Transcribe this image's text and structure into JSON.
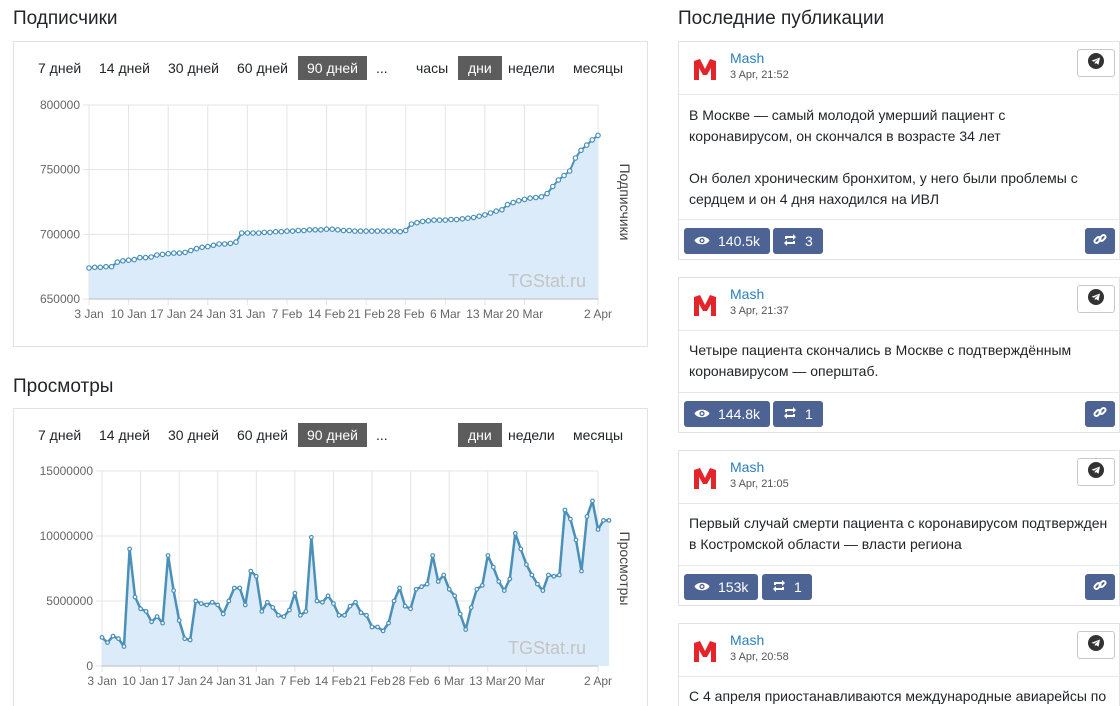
{
  "subscribers": {
    "title": "Подписчики",
    "ranges": [
      "7 дней",
      "14 дней",
      "30 дней",
      "60 дней",
      "90 дней",
      "..."
    ],
    "active_range": "90 дней",
    "periods": [
      "часы",
      "дни",
      "недели",
      "месяцы"
    ],
    "active_period": "дни",
    "watermark": "TGStat.ru"
  },
  "views": {
    "title": "Просмотры",
    "ranges": [
      "7 дней",
      "14 дней",
      "30 дней",
      "60 дней",
      "90 дней",
      "..."
    ],
    "active_range": "90 дней",
    "periods": [
      "дни",
      "недели",
      "месяцы"
    ],
    "active_period": "дни",
    "watermark": "TGStat.ru"
  },
  "chart_data": [
    {
      "type": "area",
      "ylabel": "Подписчики",
      "ylim": [
        650000,
        800000
      ],
      "yticks": [
        "800000",
        "750000",
        "700000",
        "650000"
      ],
      "xticks": [
        "3 Jan",
        "10 Jan",
        "17 Jan",
        "24 Jan",
        "31 Jan",
        "7 Feb",
        "14 Feb",
        "21 Feb",
        "28 Feb",
        "6 Mar",
        "13 Mar",
        "20 Mar",
        "2 Apr"
      ],
      "xtick_days": [
        0,
        7,
        14,
        21,
        28,
        35,
        42,
        49,
        56,
        63,
        70,
        77,
        90
      ],
      "x_range_days": [
        0,
        90
      ],
      "line_color": "#4a90b8",
      "fill_color": "#dcebf9",
      "values": [
        674000,
        674500,
        674500,
        675000,
        675000,
        678500,
        679500,
        680000,
        680500,
        682000,
        682000,
        682500,
        684000,
        684500,
        685000,
        685500,
        685500,
        686000,
        687500,
        689000,
        690000,
        690500,
        691500,
        692500,
        692500,
        693000,
        694000,
        701000,
        701000,
        701000,
        701000,
        701500,
        701500,
        702000,
        702000,
        702500,
        702500,
        703000,
        703000,
        703500,
        703500,
        703500,
        704000,
        704000,
        703500,
        703000,
        703000,
        702500,
        702500,
        702500,
        702500,
        702500,
        702500,
        702500,
        702500,
        702000,
        703000,
        708000,
        709000,
        710000,
        710500,
        711000,
        711000,
        711000,
        711500,
        711500,
        712000,
        712500,
        713000,
        714000,
        715000,
        716500,
        718000,
        719000,
        723000,
        724500,
        726000,
        727000,
        728000,
        728500,
        729000,
        731500,
        737000,
        742000,
        745500,
        749000,
        759000,
        765000,
        769000,
        773000,
        776500
      ]
    },
    {
      "type": "area",
      "ylabel": "Просмотры",
      "ylim": [
        0,
        15000000
      ],
      "yticks": [
        "15000000",
        "10000000",
        "5000000",
        "0"
      ],
      "xticks": [
        "3 Jan",
        "10 Jan",
        "17 Jan",
        "24 Jan",
        "31 Jan",
        "7 Feb",
        "14 Feb",
        "21 Feb",
        "28 Feb",
        "6 Mar",
        "13 Mar",
        "20 Mar",
        "2 Apr"
      ],
      "xtick_days": [
        0,
        7,
        14,
        21,
        28,
        35,
        42,
        49,
        56,
        63,
        70,
        77,
        90
      ],
      "x_range_days": [
        0,
        90
      ],
      "line_color": "#4a90b8",
      "fill_color": "#dcebf9",
      "values": [
        2200000,
        1800000,
        2300000,
        2100000,
        1500000,
        9000000,
        5300000,
        4400000,
        4200000,
        3400000,
        3800000,
        3300000,
        8500000,
        5800000,
        3500000,
        2100000,
        2000000,
        5000000,
        4800000,
        4700000,
        4900000,
        4700000,
        4000000,
        5000000,
        6000000,
        6000000,
        4700000,
        7300000,
        6900000,
        4200000,
        4900000,
        4500000,
        3900000,
        3800000,
        4300000,
        5600000,
        3900000,
        4200000,
        9900000,
        5000000,
        4900000,
        5400000,
        4800000,
        3900000,
        3900000,
        4600000,
        4900000,
        4100000,
        3900000,
        3000000,
        3000000,
        2700000,
        3300000,
        5000000,
        6000000,
        4600000,
        4400000,
        5900000,
        6100000,
        6300000,
        8500000,
        6500000,
        7000000,
        5900000,
        5400000,
        4000000,
        2800000,
        4500000,
        5900000,
        6200000,
        8500000,
        7600000,
        6500000,
        5800000,
        6700000,
        10200000,
        9000000,
        7800000,
        7000000,
        6300000,
        5800000,
        7000000,
        6900000,
        7000000,
        12000000,
        11300000,
        9700000,
        7300000,
        11500000,
        12700000,
        10500000,
        11200000,
        11200000
      ]
    }
  ],
  "recent": {
    "title": "Последние публикации",
    "posts": [
      {
        "author": "Mash",
        "date": "3 Apr, 21:52",
        "text": "В Москве — самый молодой умерший пациент с коронавирусом, он скончался в возрасте 34 лет\n\nОн болел хроническим бронхитом, у него были проблемы с сердцем и он 4 дня находился на ИВЛ",
        "views": "140.5k",
        "shares": "3"
      },
      {
        "author": "Mash",
        "date": "3 Apr, 21:37",
        "text": "Четыре пациента скончались в Москве с подтверждённым коронавирусом — оперштаб.",
        "views": "144.8k",
        "shares": "1"
      },
      {
        "author": "Mash",
        "date": "3 Apr, 21:05",
        "text": "Первый случай смерти пациента с коронавирусом подтвержден в Костромской области — власти региона",
        "views": "153k",
        "shares": "1"
      },
      {
        "author": "Mash",
        "date": "3 Apr, 20:58",
        "text": "С 4 апреля приостанавливаются международные авиарейсы по",
        "views": "",
        "shares": ""
      }
    ]
  },
  "colors": {
    "accent_dark": "#5c5c5c",
    "button_blue": "#4d6394",
    "link_blue": "#2a7fbf",
    "logo_red": "#e3242b"
  },
  "icons": {
    "telegram": "telegram-icon",
    "eye": "eye-icon",
    "repost": "repost-icon",
    "link": "link-icon",
    "avatar": "mash-logo-icon"
  }
}
